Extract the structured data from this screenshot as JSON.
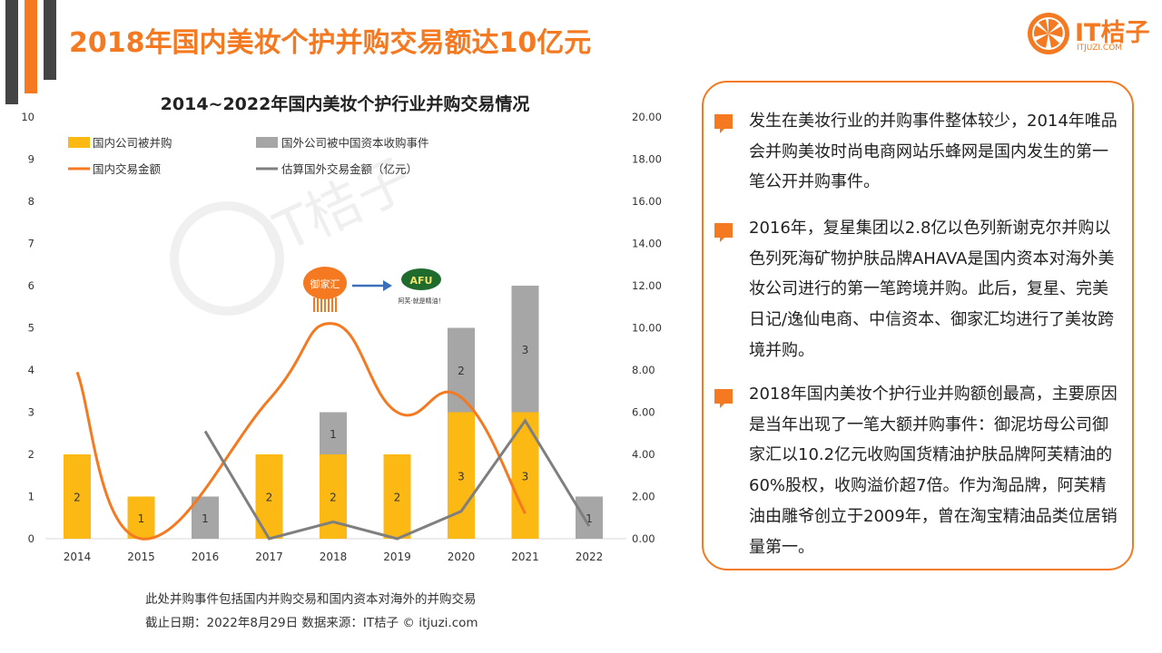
{
  "header": {
    "title": "2018年国内美妆个护并购交易额达10亿元",
    "logo_text": "IT桔子",
    "logo_sub": "ITJUZI.COM"
  },
  "colors": {
    "accent": "#f47920",
    "domestic_bar": "#fdb913",
    "foreign_bar": "#a6a6a6",
    "domestic_line": "#f47920",
    "foreign_line": "#7f7f7f",
    "dark": "#444444"
  },
  "chart_data": {
    "type": "bar",
    "title": "2014~2022年国内美妆个护行业并购交易情况",
    "categories": [
      "2014",
      "2015",
      "2016",
      "2017",
      "2018",
      "2019",
      "2020",
      "2021",
      "2022"
    ],
    "stacked": true,
    "series": [
      {
        "name": "国内公司被并购",
        "type": "bar",
        "axis": "left",
        "values": [
          2,
          1,
          0,
          2,
          2,
          2,
          3,
          3,
          0
        ]
      },
      {
        "name": "国外公司被中国资本收购事件",
        "type": "bar",
        "axis": "left",
        "values": [
          0,
          0,
          1,
          0,
          1,
          0,
          2,
          3,
          1
        ]
      },
      {
        "name": "国内交易金额",
        "type": "line",
        "smooth": true,
        "axis": "right",
        "values": [
          7.9,
          0.0,
          null,
          6.6,
          10.2,
          6.0,
          6.7,
          1.2,
          null
        ]
      },
      {
        "name": "估算国外交易金额（亿元）",
        "type": "line",
        "axis": "right",
        "values": [
          null,
          null,
          5.1,
          0.0,
          0.8,
          0.0,
          1.3,
          5.6,
          0.6
        ]
      }
    ],
    "left_axis": {
      "ylim": [
        0,
        10
      ],
      "ticks": [
        "0",
        "1",
        "2",
        "3",
        "4",
        "5",
        "6",
        "7",
        "8",
        "9",
        "10"
      ]
    },
    "right_axis": {
      "ylim": [
        0,
        20
      ],
      "ticks": [
        "0.00",
        "2.00",
        "4.00",
        "6.00",
        "8.00",
        "10.00",
        "12.00",
        "14.00",
        "16.00",
        "18.00",
        "20.00"
      ]
    },
    "bar_labels": {
      "domestic": [
        "2",
        "1",
        "",
        "2",
        "2",
        "2",
        "3",
        "3",
        ""
      ],
      "foreign": [
        "",
        "",
        "1",
        "",
        "1",
        "",
        "2",
        "3",
        "1"
      ]
    },
    "annotations": {
      "acquirer": "御家汇",
      "target": "AFU",
      "target_tagline": "阿芙·就是精油！"
    },
    "legend_position": "top-left",
    "grid": false
  },
  "footnotes": {
    "line1": "此处并购事件包括国内并购交易和国内资本对海外的并购交易",
    "line2": "截止日期：2022年8月29日    数据来源：IT桔子 © itjuzi.com"
  },
  "notes": [
    {
      "text": "发生在美妆行业的并购事件整体较少，2014年唯品会并购美妆时尚电商网站乐蜂网是国内发生的第一笔公开并购事件。"
    },
    {
      "text": "2016年，复星集团以2.8亿以色列新谢克尔并购以色列死海矿物护肤品牌AHAVA是国内资本对海外美妆公司进行的第一笔跨境并购。此后，复星、完美日记/逸仙电商、中信资本、御家汇均进行了美妆跨境并购。"
    },
    {
      "text": "2018年国内美妆个护行业并购额创最高，主要原因是当年出现了一笔大额并购事件：御泥坊母公司御家汇以10.2亿元收购国货精油护肤品牌阿芙精油的60%股权，收购溢价超7倍。作为淘品牌，阿芙精油由雕爷创立于2009年，曾在淘宝精油品类位居销量第一。"
    }
  ]
}
